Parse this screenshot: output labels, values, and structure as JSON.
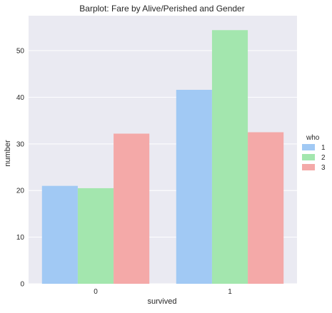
{
  "chart_data": {
    "type": "bar",
    "title": "Barplot: Fare by Alive/Perished and Gender",
    "xlabel": "survived",
    "ylabel": "number",
    "categories": [
      "0",
      "1"
    ],
    "series": [
      {
        "name": "1",
        "values": [
          21.0,
          41.6
        ]
      },
      {
        "name": "2",
        "values": [
          20.5,
          54.4
        ]
      },
      {
        "name": "3",
        "values": [
          32.2,
          32.5
        ]
      }
    ],
    "ylim": [
      0,
      57.5
    ],
    "yticks": [
      0,
      10,
      20,
      30,
      40,
      50
    ],
    "grid": true,
    "legend": {
      "title": "who",
      "placement": "right"
    },
    "colors": {
      "background": "#eaeaf2",
      "grid": "#ffffff",
      "series": [
        "#a1c9f4",
        "#a3e6ae",
        "#f4a9a8"
      ]
    }
  }
}
